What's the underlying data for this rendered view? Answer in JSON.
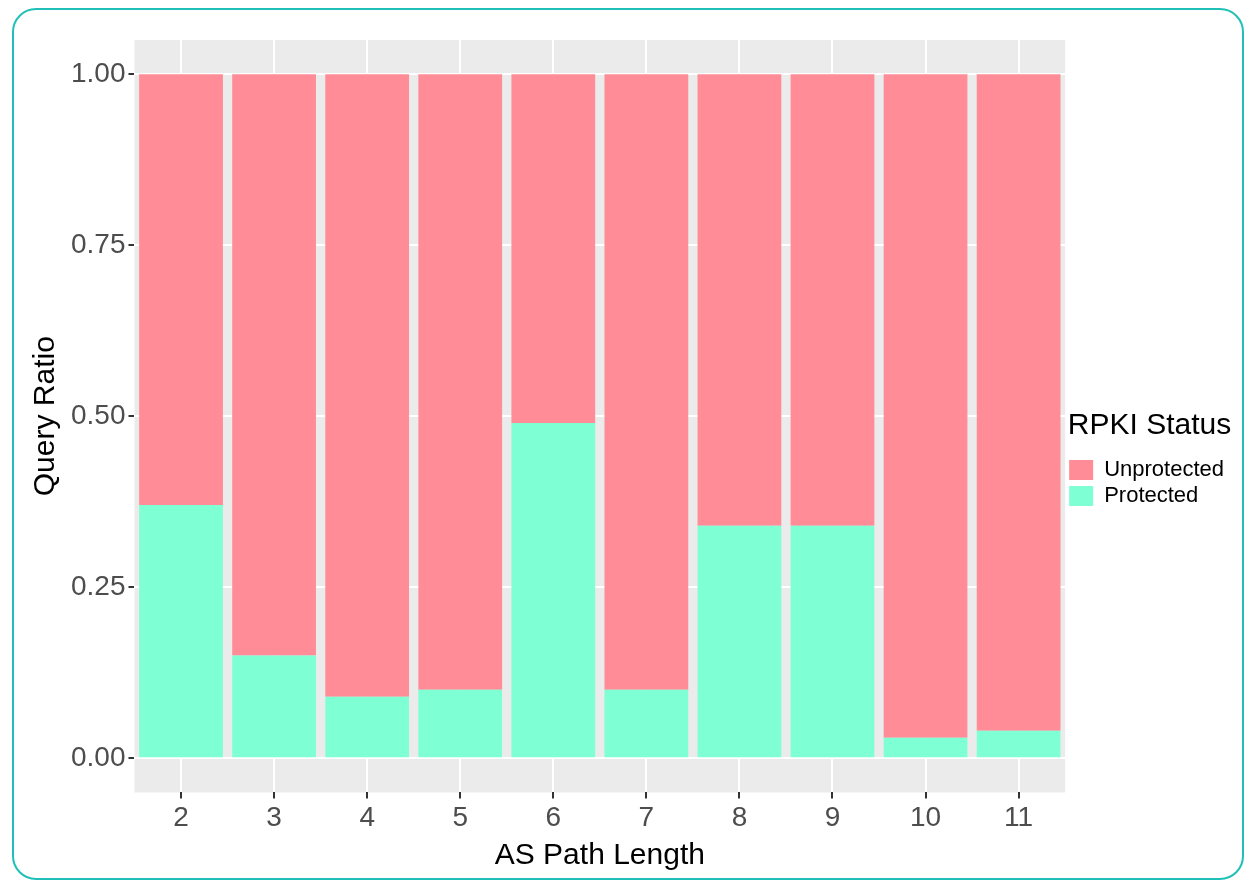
{
  "chart_data": {
    "type": "bar",
    "stacked": true,
    "xlabel": "AS Path Length",
    "ylabel": "Query Ratio",
    "legend_title": "RPKI Status",
    "legend": "right",
    "grid": true,
    "categories": [
      "2",
      "3",
      "4",
      "5",
      "6",
      "7",
      "8",
      "9",
      "10",
      "11"
    ],
    "series": [
      {
        "name": "Protected",
        "color": "#7fffd4",
        "values": [
          0.37,
          0.15,
          0.09,
          0.1,
          0.49,
          0.1,
          0.34,
          0.34,
          0.03,
          0.04
        ]
      },
      {
        "name": "Unprotected",
        "color": "#ff8c96",
        "values": [
          0.63,
          0.85,
          0.91,
          0.9,
          0.51,
          0.9,
          0.66,
          0.66,
          0.97,
          0.96
        ]
      }
    ],
    "ylim": [
      -0.05,
      1.05
    ],
    "yticks": [
      {
        "value": 0,
        "label": "0.00"
      },
      {
        "value": 0.25,
        "label": "0.25"
      },
      {
        "value": 0.5,
        "label": "0.50"
      },
      {
        "value": 0.75,
        "label": "0.75"
      },
      {
        "value": 1,
        "label": "1.00"
      }
    ]
  }
}
